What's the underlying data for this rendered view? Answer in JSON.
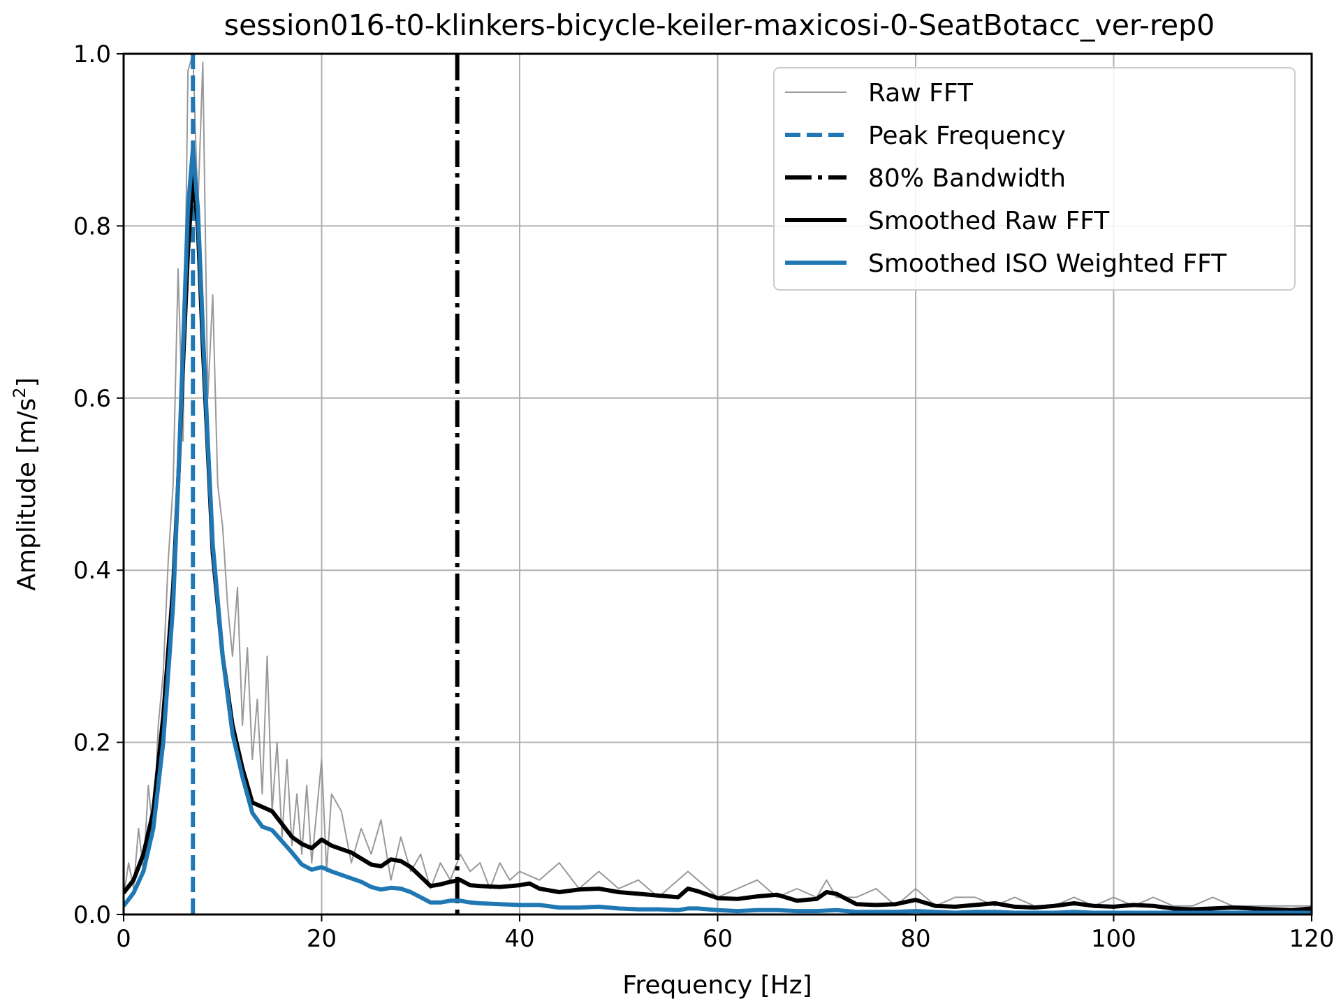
{
  "chart_data": {
    "type": "line",
    "title": "session016-t0-klinkers-bicycle-keiler-maxicosi-0-SeatBotacc_ver-rep0",
    "xlabel": "Frequency [Hz]",
    "ylabel_main": "Amplitude [m/s",
    "ylabel_sup": "2",
    "ylabel_end": "]",
    "xlim": [
      0,
      120
    ],
    "ylim": [
      0,
      1.0
    ],
    "x_ticks": [
      0,
      20,
      40,
      60,
      80,
      100,
      120
    ],
    "x_tick_labels": [
      "0",
      "20",
      "40",
      "60",
      "80",
      "100",
      "120"
    ],
    "y_ticks": [
      0.0,
      0.2,
      0.4,
      0.6,
      0.8,
      1.0
    ],
    "y_tick_labels": [
      "0.0",
      "0.2",
      "0.4",
      "0.6",
      "0.8",
      "1.0"
    ],
    "grid": true,
    "legend_position": "top-right",
    "colors": {
      "raw": "#999999",
      "peak": "#1f77b4",
      "bandwidth": "#000000",
      "smoothed_raw": "#000000",
      "smoothed_iso": "#1f77b4"
    },
    "peak_frequency": 7.0,
    "bandwidth_80": 33.7,
    "series": [
      {
        "name": "Raw FFT",
        "style": "thin-gray",
        "x": [
          0,
          0.5,
          1,
          1.5,
          2,
          2.5,
          3,
          3.5,
          4,
          4.5,
          5,
          5.5,
          6,
          6.5,
          7,
          7.5,
          8,
          8.5,
          9,
          9.5,
          10,
          10.5,
          11,
          11.5,
          12,
          12.5,
          13,
          13.5,
          14,
          14.5,
          15,
          15.5,
          16,
          16.5,
          17,
          17.5,
          18,
          18.5,
          19,
          19.5,
          20,
          20.5,
          21,
          22,
          23,
          24,
          25,
          26,
          27,
          28,
          29,
          30,
          31,
          32,
          33,
          34,
          35,
          36,
          37,
          38,
          39,
          40,
          42,
          44,
          46,
          48,
          50,
          52,
          54,
          56,
          57,
          58,
          60,
          62,
          64,
          66,
          68,
          70,
          71,
          72,
          74,
          76,
          78,
          80,
          82,
          84,
          86,
          88,
          90,
          92,
          94,
          96,
          98,
          100,
          102,
          104,
          106,
          108,
          110,
          112,
          114,
          116,
          118,
          120
        ],
        "y": [
          0.02,
          0.06,
          0.03,
          0.1,
          0.05,
          0.15,
          0.09,
          0.22,
          0.28,
          0.41,
          0.5,
          0.75,
          0.55,
          0.98,
          1.0,
          0.82,
          0.99,
          0.6,
          0.72,
          0.5,
          0.45,
          0.36,
          0.3,
          0.38,
          0.22,
          0.31,
          0.18,
          0.25,
          0.14,
          0.3,
          0.12,
          0.2,
          0.09,
          0.18,
          0.08,
          0.14,
          0.07,
          0.15,
          0.06,
          0.12,
          0.18,
          0.05,
          0.14,
          0.12,
          0.06,
          0.1,
          0.07,
          0.11,
          0.04,
          0.09,
          0.05,
          0.07,
          0.03,
          0.06,
          0.04,
          0.07,
          0.05,
          0.06,
          0.03,
          0.06,
          0.04,
          0.05,
          0.04,
          0.06,
          0.03,
          0.05,
          0.03,
          0.04,
          0.02,
          0.04,
          0.05,
          0.04,
          0.02,
          0.03,
          0.04,
          0.02,
          0.03,
          0.02,
          0.04,
          0.02,
          0.02,
          0.03,
          0.01,
          0.03,
          0.01,
          0.02,
          0.02,
          0.01,
          0.02,
          0.01,
          0.01,
          0.02,
          0.01,
          0.02,
          0.01,
          0.02,
          0.01,
          0.01,
          0.02,
          0.01,
          0.01,
          0.01,
          0.01,
          0.01
        ]
      },
      {
        "name": "Smoothed Raw FFT",
        "style": "thick-black",
        "x": [
          0,
          1,
          2,
          3,
          4,
          5,
          5.5,
          6,
          6.5,
          7,
          7.5,
          8,
          8.5,
          9,
          10,
          11,
          12,
          13,
          14,
          15,
          16,
          17,
          18,
          19,
          20,
          21,
          22,
          23,
          24,
          25,
          26,
          27,
          28,
          29,
          30,
          31,
          32,
          33,
          34,
          35,
          36,
          38,
          40,
          41,
          42,
          44,
          46,
          48,
          50,
          52,
          54,
          56,
          57,
          58,
          60,
          62,
          64,
          66,
          68,
          70,
          71,
          72,
          74,
          76,
          78,
          80,
          82,
          84,
          86,
          88,
          90,
          92,
          94,
          96,
          98,
          100,
          102,
          104,
          106,
          108,
          110,
          112,
          114,
          116,
          118,
          120
        ],
        "y": [
          0.025,
          0.04,
          0.07,
          0.12,
          0.23,
          0.38,
          0.5,
          0.64,
          0.77,
          0.86,
          0.8,
          0.66,
          0.54,
          0.42,
          0.3,
          0.22,
          0.17,
          0.13,
          0.125,
          0.12,
          0.105,
          0.09,
          0.082,
          0.077,
          0.087,
          0.08,
          0.076,
          0.072,
          0.065,
          0.058,
          0.056,
          0.064,
          0.062,
          0.055,
          0.044,
          0.033,
          0.035,
          0.038,
          0.04,
          0.034,
          0.033,
          0.032,
          0.034,
          0.036,
          0.03,
          0.026,
          0.029,
          0.03,
          0.026,
          0.024,
          0.022,
          0.02,
          0.03,
          0.027,
          0.019,
          0.018,
          0.021,
          0.023,
          0.016,
          0.018,
          0.026,
          0.024,
          0.012,
          0.011,
          0.012,
          0.017,
          0.01,
          0.009,
          0.011,
          0.013,
          0.009,
          0.008,
          0.01,
          0.013,
          0.01,
          0.009,
          0.011,
          0.01,
          0.007,
          0.006,
          0.007,
          0.008,
          0.007,
          0.006,
          0.005,
          0.007
        ]
      },
      {
        "name": "Smoothed ISO Weighted FFT",
        "style": "thick-blue",
        "x": [
          0,
          1,
          2,
          3,
          4,
          5,
          5.5,
          6,
          6.5,
          7,
          7.5,
          8,
          8.5,
          9,
          10,
          11,
          12,
          13,
          14,
          15,
          16,
          17,
          18,
          19,
          20,
          21,
          22,
          23,
          24,
          25,
          26,
          27,
          28,
          29,
          30,
          31,
          32,
          33,
          34,
          35,
          36,
          38,
          40,
          42,
          44,
          46,
          48,
          50,
          52,
          54,
          56,
          57,
          58,
          60,
          62,
          64,
          66,
          68,
          70,
          72,
          74,
          76,
          78,
          80,
          82,
          84,
          86,
          88,
          90,
          92,
          94,
          96,
          98,
          100,
          102,
          104,
          106,
          108,
          110,
          112,
          114,
          116,
          118,
          120
        ],
        "y": [
          0.01,
          0.025,
          0.05,
          0.1,
          0.2,
          0.36,
          0.5,
          0.66,
          0.82,
          0.89,
          0.82,
          0.68,
          0.55,
          0.43,
          0.3,
          0.21,
          0.16,
          0.118,
          0.102,
          0.098,
          0.085,
          0.072,
          0.058,
          0.052,
          0.055,
          0.05,
          0.046,
          0.042,
          0.038,
          0.032,
          0.029,
          0.031,
          0.03,
          0.026,
          0.02,
          0.014,
          0.014,
          0.016,
          0.016,
          0.014,
          0.013,
          0.012,
          0.011,
          0.011,
          0.008,
          0.008,
          0.009,
          0.007,
          0.006,
          0.006,
          0.005,
          0.007,
          0.007,
          0.005,
          0.004,
          0.005,
          0.005,
          0.004,
          0.004,
          0.005,
          0.003,
          0.003,
          0.003,
          0.004,
          0.003,
          0.002,
          0.003,
          0.003,
          0.002,
          0.002,
          0.002,
          0.003,
          0.002,
          0.002,
          0.002,
          0.002,
          0.002,
          0.002,
          0.002,
          0.002,
          0.002,
          0.002,
          0.002,
          0.002
        ]
      }
    ],
    "legend": [
      {
        "label": "Raw FFT",
        "key": "raw"
      },
      {
        "label": "Peak Frequency",
        "key": "peak"
      },
      {
        "label": "80% Bandwidth",
        "key": "bandwidth"
      },
      {
        "label": "Smoothed Raw FFT",
        "key": "smoothed_raw"
      },
      {
        "label": "Smoothed ISO Weighted FFT",
        "key": "smoothed_iso"
      }
    ]
  }
}
